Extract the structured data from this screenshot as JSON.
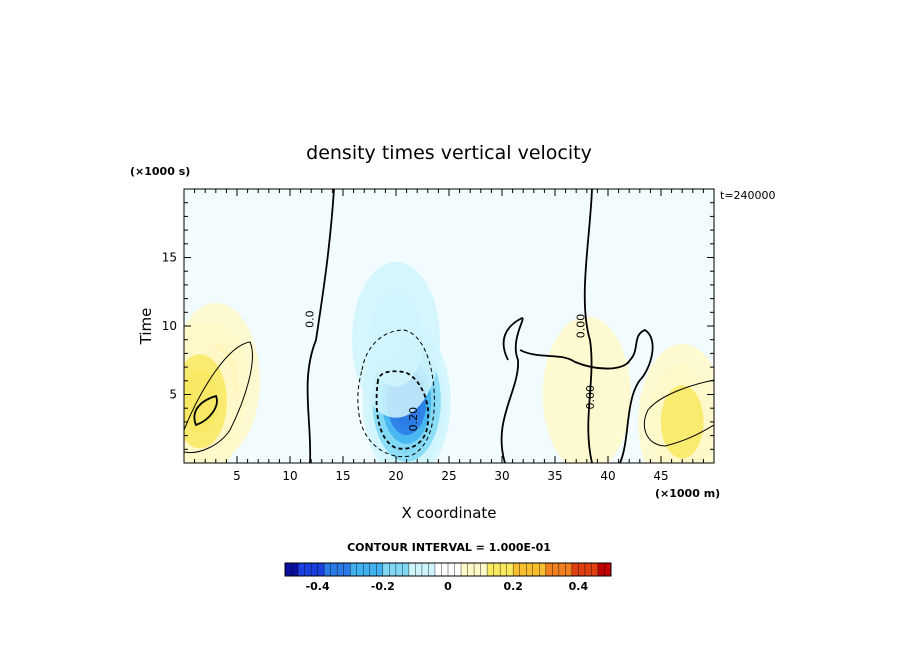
{
  "chart_data": {
    "type": "heatmap",
    "title": "density times vertical velocity",
    "xlabel": "X coordinate",
    "ylabel": "Time",
    "x_unit": "(×1000 m)",
    "y_unit": "(×1000 s)",
    "time_label": "t=240000",
    "xlim": [
      0,
      50
    ],
    "ylim": [
      0,
      20
    ],
    "x_ticks": [
      5,
      10,
      15,
      20,
      25,
      30,
      35,
      40,
      45
    ],
    "x_tick_labels": [
      "5",
      "10",
      "15",
      "20",
      "25",
      "30",
      "35",
      "40",
      "45"
    ],
    "y_ticks": [
      5,
      10,
      15
    ],
    "y_tick_labels": [
      "5",
      "10",
      "15"
    ],
    "contour_interval_text": "CONTOUR INTERVAL = 1.000E-01",
    "colorbar": {
      "min": -0.5,
      "max": 0.5,
      "ticks": [
        -0.4,
        -0.2,
        0,
        0.2,
        0.4
      ],
      "tick_labels": [
        "-0.4",
        "-0.2",
        "0",
        "0.2",
        "0.4"
      ],
      "colors_low_to_high": [
        "#0a0f9e",
        "#1a40e0",
        "#2a7ae8",
        "#40b0ee",
        "#80d8f4",
        "#d0f4fc",
        "#ffffff",
        "#fff8c8",
        "#f8e860",
        "#f8c030",
        "#f08020",
        "#e04010",
        "#c00000"
      ]
    },
    "field_features": [
      {
        "x": 21,
        "y": 4.5,
        "value": -0.35
      },
      {
        "x": 20,
        "y": 9,
        "value": -0.1
      },
      {
        "x": 3,
        "y": 6,
        "value": 0.15
      },
      {
        "x": 1.5,
        "y": 4.5,
        "value": 0.2
      },
      {
        "x": 47,
        "y": 3,
        "value": 0.15
      },
      {
        "x": 38,
        "y": 5,
        "value": 0.05
      }
    ],
    "contour_labels": [
      {
        "text": "0.20",
        "x": 22,
        "y": 3.2
      },
      {
        "text": "0.0",
        "x": 12.2,
        "y": 10.5
      },
      {
        "text": "0.00",
        "x": 37.8,
        "y": 10
      },
      {
        "text": "0.00",
        "x": 38.7,
        "y": 4.8
      }
    ]
  }
}
